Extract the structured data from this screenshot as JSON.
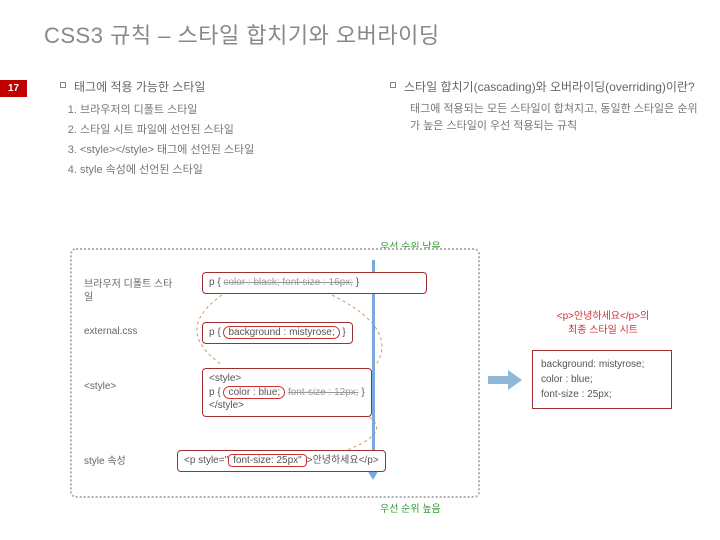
{
  "page_number": "17",
  "title": "CSS3 규칙 – 스타일 합치기와 오버라이딩",
  "left_col": {
    "heading": "태그에 적용 가능한 스타일",
    "items": [
      "브라우저의 디폴트 스타일",
      "스타일 시트 파일에 선언된 스타일",
      "<style></style> 태그에 선언된 스타일",
      "style 속성에 선언된 스타일"
    ]
  },
  "right_col": {
    "heading": "스타일 합치기(cascading)와 오버라이딩(overriding)이란?",
    "sub": "태그에 적용되는 모든 스타일이 합쳐지고, 동일한 스타일은 순위가 높은 스타일이 우선 적용되는 규칙"
  },
  "diagram": {
    "priority_low": "우선 순위 낮음",
    "priority_high": "우선 순위 높음",
    "rows": [
      {
        "label": "브라우저 디폴트 스타일",
        "code_html": "p { <span class='strike'>color : black;   font-size : 16px;</span> }"
      },
      {
        "label": "external.css",
        "code_html": "p { <span class='ring'>background : mistyrose;</span> }"
      },
      {
        "label": "<style>",
        "code_html": "&lt;style&gt;<br>p { <span class='ring'>color : blue;</span> <span class='strike'>font-size : 12px;</span> }<br>&lt;/style&gt;"
      },
      {
        "label": "style 속성",
        "code_html": "&lt;p style=\"<span class='ring' style='border-radius:4px'>font-size: 25px\"</span>&gt;안녕하세요&lt;/p&gt;"
      }
    ],
    "result_caption": "<p>안녕하세요</p>의\n최종 스타일 시트",
    "result_lines": [
      "background: mistyrose;",
      "color : blue;",
      "font-size : 25px;"
    ]
  },
  "colors": {
    "accent_red": "#c00000",
    "ring_red": "#cc3333",
    "arrow_blue": "#7aa8e0",
    "green": "#339933"
  }
}
